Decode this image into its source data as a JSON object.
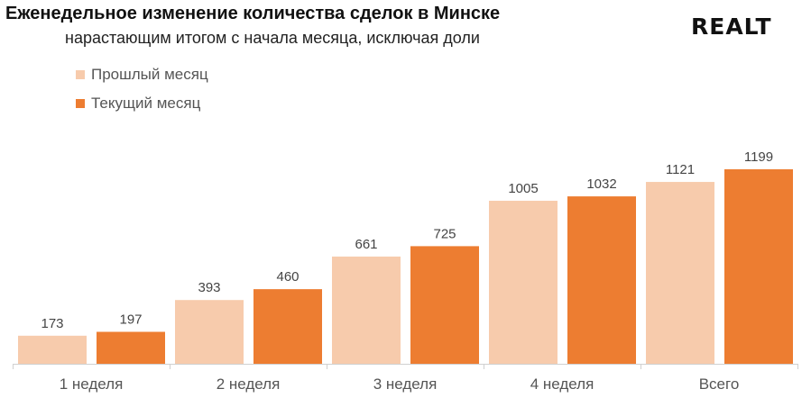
{
  "chart_data": {
    "type": "bar",
    "title": "Еженедельное изменение количества сделок в Минске",
    "subtitle": "нарастающим итогом с начала месяца, исключая доли",
    "categories": [
      "1 неделя",
      "2 неделя",
      "3 неделя",
      "4 неделя",
      "Всего"
    ],
    "series": [
      {
        "name": "Прошлый месяц",
        "color": "#F7CBAC",
        "values": [
          173,
          393,
          661,
          1005,
          1121
        ]
      },
      {
        "name": "Текущий месяц",
        "color": "#ED7D31",
        "values": [
          197,
          460,
          725,
          1032,
          1199
        ]
      }
    ],
    "ylim": [
      0,
      1199
    ],
    "grid": false,
    "legend_position": "top-left",
    "data_labels": true
  },
  "logo": "REALT"
}
